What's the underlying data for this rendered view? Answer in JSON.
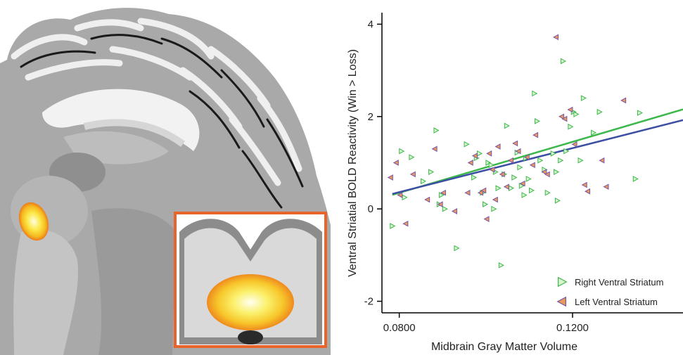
{
  "colors": {
    "right_line": "#3cb84a",
    "left_line": "#3d4fa3",
    "right_marker_fill": "#d9f5d0",
    "right_marker_stroke": "#3cb84a",
    "left_marker_fill": "#e89a5a",
    "left_marker_stroke": "#7a55a8",
    "inset_border": "#e8642a"
  },
  "brain_figure": {
    "view": "sagittal-mri-slice",
    "inset": "coronal-midbrain-activation"
  },
  "chart_data": {
    "type": "scatter",
    "ylabel": "Ventral Striatial BOLD Reactivity (Win > Loss)",
    "xlabel": "Midbrain Gray Matter Volume",
    "xlim": [
      0.076,
      0.1455
    ],
    "ylim": [
      -2.25,
      4.25
    ],
    "xticks": [
      0.08,
      0.12
    ],
    "xtick_labels": [
      "0.0800",
      "0.1200"
    ],
    "yticks": [
      -2,
      0,
      2,
      4
    ],
    "ytick_labels": [
      "-2",
      "0",
      "2",
      "4"
    ],
    "grid": false,
    "legend_position": "bottom-right",
    "series": [
      {
        "name": "Right Ventral Striatum",
        "marker": "triangle-right",
        "fit": {
          "intercept": -1.86,
          "slope": 27.6
        },
        "points": [
          [
            0.0784,
            -0.37
          ],
          [
            0.0805,
            1.25
          ],
          [
            0.0812,
            0.25
          ],
          [
            0.0828,
            1.12
          ],
          [
            0.0855,
            0.6
          ],
          [
            0.0873,
            0.8
          ],
          [
            0.0885,
            1.7
          ],
          [
            0.0892,
            0.1
          ],
          [
            0.0897,
            0.3
          ],
          [
            0.0905,
            0.0
          ],
          [
            0.0932,
            -0.85
          ],
          [
            0.0955,
            1.4
          ],
          [
            0.0972,
            0.68
          ],
          [
            0.0978,
            1.1
          ],
          [
            0.0985,
            1.2
          ],
          [
            0.0992,
            0.35
          ],
          [
            0.0998,
            0.1
          ],
          [
            0.1005,
            1.0
          ],
          [
            0.1012,
            0.95
          ],
          [
            0.1018,
            0.0
          ],
          [
            0.1022,
            0.8
          ],
          [
            0.1028,
            0.45
          ],
          [
            0.1035,
            -1.22
          ],
          [
            0.1042,
            0.75
          ],
          [
            0.1048,
            1.8
          ],
          [
            0.1058,
            0.45
          ],
          [
            0.1065,
            0.68
          ],
          [
            0.1072,
            1.22
          ],
          [
            0.1078,
            0.9
          ],
          [
            0.1082,
            0.5
          ],
          [
            0.1088,
            0.3
          ],
          [
            0.1092,
            1.1
          ],
          [
            0.1098,
            0.65
          ],
          [
            0.1105,
            0.4
          ],
          [
            0.1112,
            2.5
          ],
          [
            0.1118,
            1.9
          ],
          [
            0.1125,
            1.05
          ],
          [
            0.1135,
            0.85
          ],
          [
            0.1142,
            0.35
          ],
          [
            0.1155,
            1.2
          ],
          [
            0.1162,
            0.8
          ],
          [
            0.1165,
            0.18
          ],
          [
            0.1172,
            1.05
          ],
          [
            0.1178,
            3.2
          ],
          [
            0.1185,
            1.25
          ],
          [
            0.1195,
            1.78
          ],
          [
            0.1202,
            2.1
          ],
          [
            0.1208,
            2.05
          ],
          [
            0.1218,
            1.05
          ],
          [
            0.1225,
            2.4
          ],
          [
            0.1248,
            1.65
          ],
          [
            0.1262,
            2.1
          ],
          [
            0.1345,
            0.65
          ],
          [
            0.1355,
            2.08
          ]
        ]
      },
      {
        "name": "Left Ventral Striatum",
        "marker": "triangle-left",
        "fit": {
          "intercept": -1.54,
          "slope": 23.8
        },
        "points": [
          [
            0.078,
            0.68
          ],
          [
            0.0793,
            1.0
          ],
          [
            0.0802,
            0.3
          ],
          [
            0.0815,
            -0.32
          ],
          [
            0.0832,
            0.75
          ],
          [
            0.0865,
            0.2
          ],
          [
            0.0882,
            1.3
          ],
          [
            0.0895,
            0.1
          ],
          [
            0.0902,
            0.35
          ],
          [
            0.0928,
            -0.05
          ],
          [
            0.0958,
            0.35
          ],
          [
            0.0965,
            1.0
          ],
          [
            0.0975,
            1.15
          ],
          [
            0.0988,
            0.35
          ],
          [
            0.0995,
            0.4
          ],
          [
            0.1002,
            -0.22
          ],
          [
            0.1008,
            1.2
          ],
          [
            0.1015,
            0.85
          ],
          [
            0.1022,
            0.2
          ],
          [
            0.1028,
            1.35
          ],
          [
            0.1038,
            0.75
          ],
          [
            0.1048,
            0.48
          ],
          [
            0.1058,
            1.05
          ],
          [
            0.1068,
            1.42
          ],
          [
            0.1075,
            1.25
          ],
          [
            0.1085,
            0.55
          ],
          [
            0.1095,
            1.12
          ],
          [
            0.1108,
            0.95
          ],
          [
            0.1115,
            1.6
          ],
          [
            0.1135,
            0.8
          ],
          [
            0.1142,
            0.75
          ],
          [
            0.1162,
            3.72
          ],
          [
            0.1175,
            2.0
          ],
          [
            0.1182,
            1.95
          ],
          [
            0.1195,
            2.15
          ],
          [
            0.1205,
            1.4
          ],
          [
            0.1228,
            0.52
          ],
          [
            0.1235,
            0.38
          ],
          [
            0.1268,
            1.05
          ],
          [
            0.1278,
            0.48
          ],
          [
            0.1318,
            2.35
          ]
        ]
      }
    ]
  }
}
